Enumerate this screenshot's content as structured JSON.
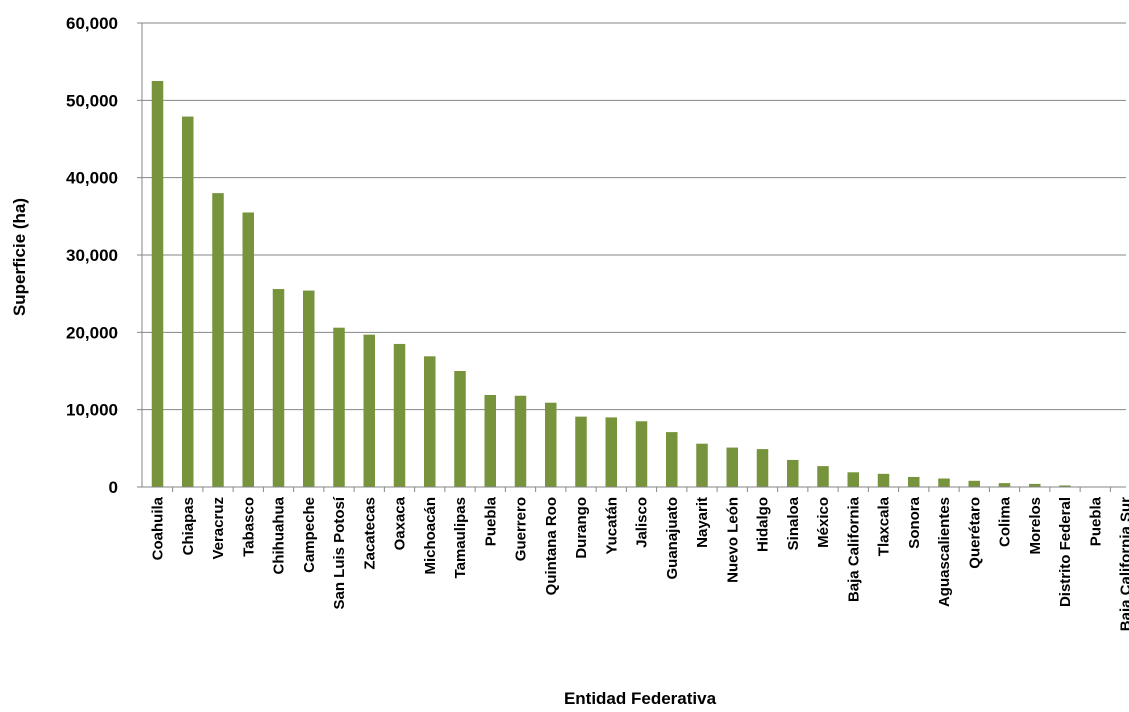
{
  "chart_data": {
    "type": "bar",
    "title": "",
    "xlabel": "Entidad Federativa",
    "ylabel": "Superficie (ha)",
    "ylim": [
      0,
      60000
    ],
    "yticks": [
      "0",
      "10,000",
      "20,000",
      "30,000",
      "40,000",
      "50,000",
      "60,000"
    ],
    "grid": true,
    "legend": "none",
    "bar_color": "#77933c",
    "categories": [
      "Coahuila",
      "Chiapas",
      "Veracruz",
      "Tabasco",
      "Chihuahua",
      "Campeche",
      "San Luis Potosí",
      "Zacatecas",
      "Oaxaca",
      "Michoacán",
      "Tamaulipas",
      "Puebla",
      "Guerrero",
      "Quintana Roo",
      "Durango",
      "Yucatán",
      "Jalisco",
      "Guanajuato",
      "Nayarit",
      "Nuevo León",
      "Hidalgo",
      "Sinaloa",
      "México",
      "Baja California",
      "Tlaxcala",
      "Sonora",
      "Aguascalientes",
      "Querétaro",
      "Colima",
      "Morelos",
      "Distrito Federal",
      "Puebla",
      "Baja California Sur"
    ],
    "values": [
      52500,
      47900,
      38000,
      35500,
      25600,
      25400,
      20600,
      19700,
      18500,
      16900,
      15000,
      11900,
      11800,
      10900,
      9100,
      9000,
      8500,
      7100,
      5600,
      5100,
      4900,
      3500,
      2700,
      1900,
      1700,
      1300,
      1100,
      800,
      500,
      400,
      200,
      0,
      0
    ]
  }
}
